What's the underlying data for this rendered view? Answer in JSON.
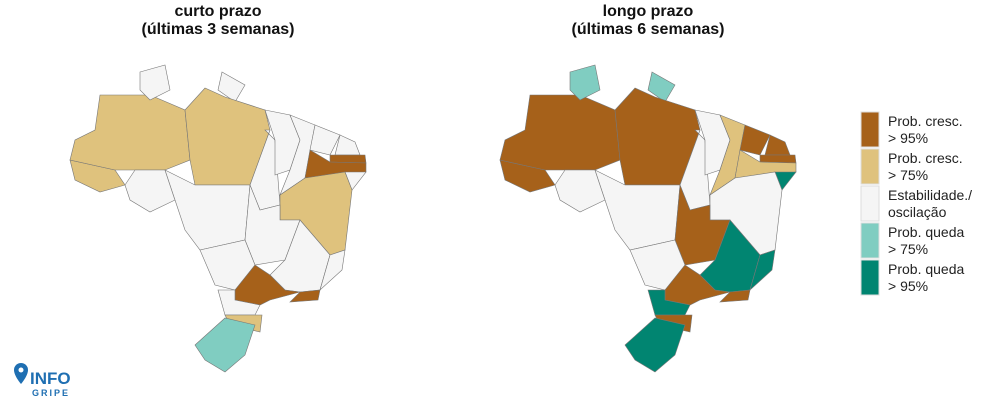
{
  "maps": [
    {
      "title": [
        "curto prazo",
        "(últimas 3 semanas)"
      ],
      "regions": [
        "#dfc27d",
        "#dfc27d",
        "#f5f5f5",
        "#f5f5f5",
        "#dfc27d",
        "#f5f5f5",
        "#f5f5f5",
        "#f5f5f5",
        "#f5f5f5",
        "#f5f5f5",
        "#f5f5f5",
        "#f5f5f5",
        "#a6611a",
        "#a6611a",
        "#f5f5f5",
        "#dfc27d",
        "#f5f5f5",
        "#f5f5f5",
        "#f5f5f5",
        "#f5f5f5",
        "#a6611a",
        "#a6611a",
        "#f5f5f5",
        "#dfc27d",
        "#80cdc1"
      ]
    },
    {
      "title": [
        "longo prazo",
        "(últimas 6 semanas)"
      ],
      "regions": [
        "#a6611a",
        "#a6611a",
        "#80cdc1",
        "#80cdc1",
        "#a6611a",
        "#f5f5f5",
        "#f5f5f5",
        "#f5f5f5",
        "#f5f5f5",
        "#dfc27d",
        "#a6611a",
        "#a6611a",
        "#a6611a",
        "#dfc27d",
        "#018571",
        "#f5f5f5",
        "#a6611a",
        "#f5f5f5",
        "#018571",
        "#018571",
        "#a6611a",
        "#a6611a",
        "#018571",
        "#a6611a",
        "#018571"
      ]
    }
  ],
  "legend": [
    {
      "label": [
        "Prob. cresc.",
        "> 95%"
      ],
      "color": "#a6611a"
    },
    {
      "label": [
        "Prob. cresc.",
        "> 75%"
      ],
      "color": "#dfc27d"
    },
    {
      "label": [
        "Estabilidade./",
        "oscilação"
      ],
      "color": "#f5f5f5"
    },
    {
      "label": [
        "Prob. queda",
        "> 75%"
      ],
      "color": "#80cdc1"
    },
    {
      "label": [
        "Prob. queda",
        "> 95%"
      ],
      "color": "#018571"
    }
  ],
  "logo": {
    "top": "INFO",
    "bottom": "GRIPE"
  }
}
